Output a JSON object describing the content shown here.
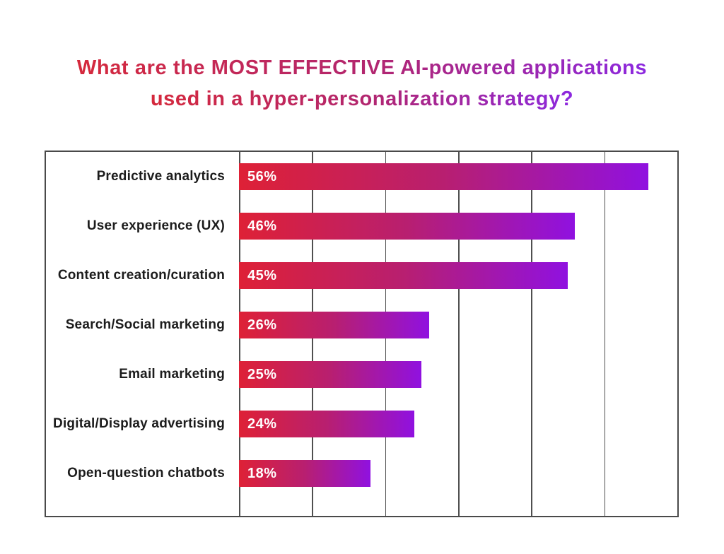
{
  "page": {
    "background": "#ffffff"
  },
  "title": {
    "line1": "What are the MOST EFFECTIVE AI-powered applications",
    "line2": "used in a hyper-personalization strategy?",
    "gradient": {
      "start": "#D5293C",
      "mid": "#B22670",
      "end": "#8C28E0"
    }
  },
  "chart_data": {
    "type": "bar",
    "orientation": "horizontal",
    "categories": [
      "Predictive analytics",
      "User experience (UX)",
      "Content creation/curation",
      "Search/Social marketing",
      "Email marketing",
      "Digital/Display advertising",
      "Open-question chatbots"
    ],
    "values": [
      56,
      46,
      45,
      26,
      25,
      24,
      18
    ],
    "value_labels": [
      "56%",
      "46%",
      "45%",
      "26%",
      "25%",
      "24%",
      "18%"
    ],
    "xlim": [
      0,
      60
    ],
    "gridline_step": 10,
    "grid": true,
    "legend": false,
    "styles": {
      "bar_gradient_start": "#DE2136",
      "bar_gradient_mid": "#B81F70",
      "bar_gradient_end": "#9011E0",
      "grid_color": "#4f4f4f",
      "border_color": "#4a4a4a",
      "category_color": "#1c1c1c",
      "value_color": "#ffffff"
    }
  }
}
